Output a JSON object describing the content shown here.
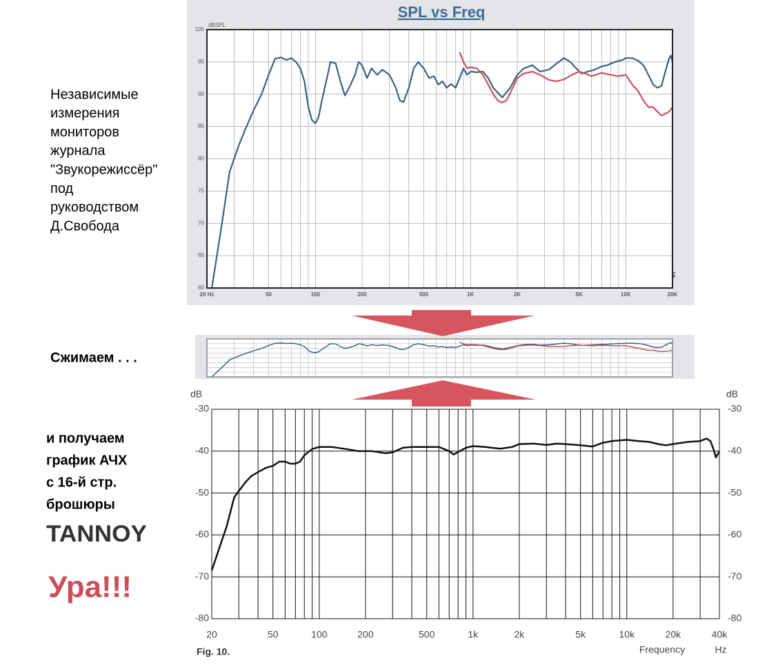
{
  "side_text": {
    "caption_lines": [
      "Независимые",
      "измерения",
      "мониторов",
      "журнала",
      "\"Звукорежиссёр\"",
      "под",
      "руководством",
      "Д.Свобода"
    ],
    "squeeze": "Сжимаем . . .",
    "result_lines": [
      "и получаем",
      "график АЧХ",
      "с 16-й стр.",
      "брошюры"
    ],
    "brand": "TANNOY",
    "cheer": "Ура!!!"
  },
  "chart_data": [
    {
      "type": "line",
      "title": "SPL vs Freq",
      "y_label": "dBSPL",
      "logo": "LMS",
      "log_x": true,
      "grid": true,
      "xlim": [
        20,
        20000
      ],
      "ylim": [
        60,
        100
      ],
      "xticks": [
        {
          "value": 20,
          "label": "20 Hz"
        },
        50,
        100,
        200,
        500,
        {
          "value": 1000,
          "label": "1K"
        },
        {
          "value": 2000,
          "label": "2K"
        },
        {
          "value": 5000,
          "label": "5K"
        },
        {
          "value": 10000,
          "label": "10K"
        },
        {
          "value": 20000,
          "label": "20K"
        }
      ],
      "xgrid": [
        20,
        30,
        40,
        50,
        60,
        70,
        80,
        90,
        100,
        200,
        300,
        400,
        500,
        600,
        700,
        800,
        900,
        1000,
        2000,
        3000,
        4000,
        5000,
        6000,
        7000,
        8000,
        9000,
        10000,
        20000
      ],
      "yticks": [
        60,
        65,
        70,
        75,
        80,
        85,
        90,
        95,
        100
      ],
      "series": [
        {
          "color": "#3b5f80",
          "x": [
            21.5,
            25,
            28,
            32,
            36,
            40,
            45,
            50,
            55,
            60,
            65,
            70,
            75,
            80,
            85,
            90,
            95,
            100,
            105,
            110,
            120,
            125,
            135,
            145,
            155,
            165,
            180,
            190,
            200,
            215,
            230,
            250,
            270,
            300,
            330,
            350,
            370,
            400,
            430,
            460,
            500,
            540,
            580,
            620,
            660,
            700,
            750,
            800,
            850,
            900,
            950,
            1000,
            1100,
            1200,
            1300,
            1400,
            1600,
            1800,
            2000,
            2200,
            2500,
            2800,
            3200,
            3600,
            4000,
            4400,
            4800,
            5200,
            5700,
            6300,
            7000,
            7600,
            8500,
            9500,
            10000,
            11000,
            12000,
            13000,
            14000,
            15000,
            16000,
            17000,
            18000,
            19000,
            19500,
            20000
          ],
          "values": [
            60,
            70,
            78,
            82,
            85,
            87.5,
            90,
            93,
            95.5,
            95.7,
            95.3,
            95.6,
            95,
            94,
            92,
            88,
            86,
            85.5,
            86.5,
            89,
            93,
            95,
            94.8,
            92,
            89.8,
            91,
            93,
            95,
            94.5,
            92.5,
            94,
            93,
            93.8,
            93,
            91,
            89,
            88.8,
            91,
            94,
            95,
            94,
            92.5,
            92.8,
            91.5,
            92,
            91,
            91.6,
            91,
            92.5,
            94,
            93,
            93.5,
            93.4,
            93.5,
            92.5,
            91,
            89.5,
            91,
            93,
            94,
            94.5,
            93.5,
            93.8,
            94.8,
            95.6,
            95,
            94,
            93.2,
            93.5,
            93.8,
            94.3,
            94.5,
            95,
            95.3,
            95.6,
            95.6,
            95.2,
            94.5,
            93,
            91.5,
            91,
            91.3,
            93.5,
            95.5,
            96,
            95
          ]
        },
        {
          "color": "#c8505a",
          "x": [
            850,
            900,
            950,
            1000,
            1100,
            1200,
            1300,
            1400,
            1500,
            1600,
            1700,
            1800,
            2000,
            2200,
            2500,
            2800,
            3200,
            3600,
            4000,
            4500,
            5000,
            5500,
            6000,
            7000,
            8000,
            9000,
            10000,
            11000,
            12000,
            13000,
            14000,
            15000,
            16000,
            17000,
            18000,
            19000,
            20000
          ],
          "values": [
            96.5,
            95,
            94,
            94.2,
            94,
            93,
            91.5,
            90,
            89,
            88.7,
            89,
            90.2,
            92.5,
            93.2,
            93.5,
            93,
            92.2,
            92,
            92.3,
            93,
            93.5,
            93.2,
            92.8,
            93.3,
            93,
            92.8,
            93,
            91.5,
            90.5,
            89,
            88,
            88,
            87.3,
            86.7,
            87,
            87.3,
            88
          ]
        }
      ]
    },
    {
      "type": "line",
      "y_label": "dB",
      "y2_label": "dB",
      "x_label": "Frequency",
      "x_unit": "Hz",
      "caption": "Fig. 10.",
      "log_x": true,
      "grid": true,
      "xlim": [
        20,
        40000
      ],
      "ylim": [
        -80,
        -30
      ],
      "y2lim": [
        -80,
        -30
      ],
      "xticks": [
        20,
        50,
        100,
        200,
        500,
        {
          "value": 1000,
          "label": "1k"
        },
        {
          "value": 2000,
          "label": "2k"
        },
        {
          "value": 5000,
          "label": "5k"
        },
        {
          "value": 10000,
          "label": "10k"
        },
        {
          "value": 20000,
          "label": "20k"
        },
        {
          "value": 40000,
          "label": "40k"
        }
      ],
      "xgrid": [
        20,
        30,
        40,
        50,
        60,
        70,
        80,
        90,
        100,
        200,
        300,
        400,
        500,
        600,
        700,
        800,
        900,
        1000,
        2000,
        3000,
        4000,
        5000,
        6000,
        7000,
        8000,
        9000,
        10000,
        20000,
        30000,
        40000
      ],
      "yticks": [
        -80,
        -70,
        -60,
        -50,
        -40,
        -30
      ],
      "y2ticks": [
        -80,
        -70,
        -60,
        -50,
        -40,
        -30
      ],
      "color": "#111111",
      "x": [
        20,
        22,
        25,
        28,
        30,
        33,
        36,
        40,
        45,
        50,
        55,
        60,
        65,
        70,
        75,
        80,
        90,
        100,
        120,
        150,
        180,
        220,
        270,
        300,
        350,
        400,
        500,
        600,
        650,
        700,
        750,
        800,
        900,
        1000,
        1200,
        1500,
        1800,
        2000,
        2500,
        3000,
        3500,
        4000,
        5000,
        6000,
        7000,
        8000,
        10000,
        12000,
        14000,
        16000,
        18000,
        20000,
        25000,
        30000,
        33000,
        35000,
        37000,
        38000,
        40000
      ],
      "values": [
        -68.5,
        -64,
        -58,
        -51,
        -49.5,
        -47.5,
        -46,
        -45,
        -44,
        -43.5,
        -42.5,
        -42.5,
        -43,
        -43,
        -42.5,
        -41,
        -39.5,
        -39,
        -39,
        -39.5,
        -40,
        -40,
        -40.5,
        -40.3,
        -39.2,
        -39,
        -39,
        -39,
        -39.5,
        -40,
        -40.8,
        -40.2,
        -39.2,
        -38.8,
        -39,
        -39.4,
        -39,
        -38.3,
        -38.2,
        -38.5,
        -38.2,
        -38.3,
        -38.6,
        -38.9,
        -38,
        -37.6,
        -37.3,
        -37.6,
        -37.8,
        -38.3,
        -38.6,
        -38.3,
        -37.8,
        -37.6,
        -37,
        -37.6,
        -40,
        -41.5,
        -40
      ]
    }
  ]
}
